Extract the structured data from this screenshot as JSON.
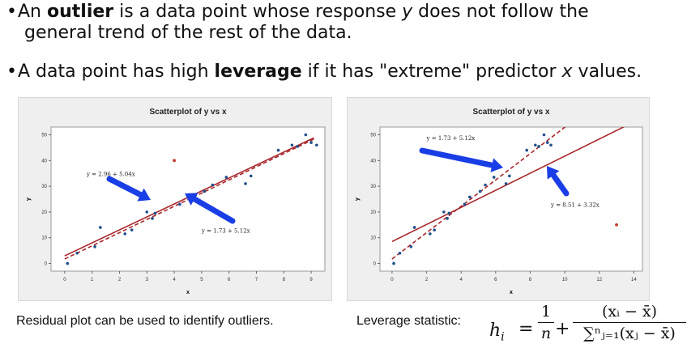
{
  "bullets": [
    {
      "pre": "An ",
      "bold": "outlier",
      "mid": " is a data point whose response ",
      "ital": "y",
      "post": " does not follow the",
      "cont": "general trend of the rest of the data."
    },
    {
      "pre": "A data point has high ",
      "bold": "leverage",
      "mid": " if it has \"extreme\" predictor ",
      "ital": "x",
      "post": " values."
    }
  ],
  "chart_data": [
    {
      "type": "scatter",
      "title": "Scatterplot of y vs x",
      "xlabel": "x",
      "ylabel": "y",
      "xlim": [
        -0.5,
        9.5
      ],
      "ylim": [
        -3,
        53
      ],
      "xticks": [
        0,
        1,
        2,
        3,
        4,
        5,
        6,
        7,
        8,
        9
      ],
      "yticks": [
        0,
        10,
        20,
        30,
        40,
        50
      ],
      "grid": false,
      "points": [
        [
          0.1,
          0
        ],
        [
          0.45,
          4
        ],
        [
          1.1,
          6.5
        ],
        [
          1.3,
          14
        ],
        [
          2.2,
          11.5
        ],
        [
          2.45,
          13
        ],
        [
          3,
          20
        ],
        [
          3.2,
          17.5
        ],
        [
          3.3,
          19.5
        ],
        [
          4.2,
          23
        ],
        [
          4.5,
          25.8
        ],
        [
          5.1,
          28
        ],
        [
          5.4,
          30.5
        ],
        [
          5.9,
          33.5
        ],
        [
          6.6,
          31
        ],
        [
          6.8,
          34
        ],
        [
          7.8,
          44
        ],
        [
          8.3,
          46
        ],
        [
          8.5,
          45.5
        ],
        [
          8.8,
          50
        ],
        [
          9,
          47
        ],
        [
          9.2,
          46
        ]
      ],
      "outliers": [
        [
          4,
          40
        ]
      ],
      "point_color": "#1f4e8c",
      "outlier_color": "#c0392b",
      "lines": [
        {
          "label": "y = 2.96 + 5.04x",
          "intercept": 2.96,
          "slope": 5.04,
          "style": "solid",
          "color": "#a8262b"
        },
        {
          "label": "y = 1.73 + 5.12x",
          "intercept": 1.73,
          "slope": 5.12,
          "style": "dashed",
          "color": "#a8262b"
        }
      ],
      "annotations": [
        {
          "text": "y = 2.96 + 5.04x",
          "x": 0.8,
          "y": 34
        },
        {
          "text": "y = 1.73 + 5.12x",
          "x": 5,
          "y": 12
        }
      ],
      "arrow_color": "#1a3ee6"
    },
    {
      "type": "scatter",
      "title": "Scatterplot of y vs x",
      "xlabel": "x",
      "ylabel": "y",
      "xlim": [
        -0.7,
        14.5
      ],
      "ylim": [
        -3,
        53
      ],
      "xticks": [
        0,
        2,
        4,
        6,
        8,
        10,
        12,
        14
      ],
      "yticks": [
        0,
        10,
        20,
        30,
        40,
        50
      ],
      "grid": false,
      "points": [
        [
          0.1,
          0
        ],
        [
          0.45,
          4
        ],
        [
          1.1,
          6.5
        ],
        [
          1.3,
          14
        ],
        [
          2.2,
          11.5
        ],
        [
          2.45,
          13
        ],
        [
          3,
          20
        ],
        [
          3.2,
          17.5
        ],
        [
          3.3,
          19.5
        ],
        [
          4.2,
          23
        ],
        [
          4.5,
          25.8
        ],
        [
          5.1,
          28
        ],
        [
          5.4,
          30.5
        ],
        [
          5.9,
          33.5
        ],
        [
          6.6,
          31
        ],
        [
          6.8,
          34
        ],
        [
          7.8,
          44
        ],
        [
          8.3,
          46
        ],
        [
          8.5,
          45.5
        ],
        [
          8.8,
          50
        ],
        [
          9,
          47
        ],
        [
          9.2,
          46
        ]
      ],
      "outliers": [
        [
          13,
          15
        ]
      ],
      "point_color": "#1f4e8c",
      "outlier_color": "#c0392b",
      "lines": [
        {
          "label": "y = 1.73 + 5.12x",
          "intercept": 1.73,
          "slope": 5.12,
          "style": "dashed",
          "color": "#a8262b"
        },
        {
          "label": "y = 8.51 + 3.32x",
          "intercept": 8.51,
          "slope": 3.32,
          "style": "solid",
          "color": "#a8262b"
        }
      ],
      "annotations": [
        {
          "text": "y = 1.73 + 5.12x",
          "x": 2,
          "y": 48
        },
        {
          "text": "y = 8.51 + 3.32x",
          "x": 9.2,
          "y": 22
        }
      ],
      "arrow_color": "#1a3ee6"
    }
  ],
  "captions": {
    "left": "Residual plot can be used to identify outliers.",
    "right": "Leverage statistic:"
  },
  "formula": {
    "h": "h",
    "sub_i": "i",
    "equals": "=",
    "plus": "+",
    "frac1_num": "1",
    "frac1_den": "n",
    "frac2_num": "(xᵢ − x̄)",
    "frac2_den": "∑ⁿⱼ₌₁(xⱼ − x̄)"
  }
}
